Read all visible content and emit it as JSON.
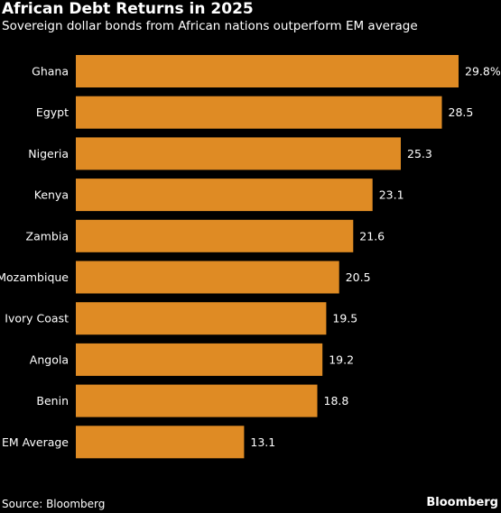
{
  "title": "African Debt Returns in 2025",
  "subtitle": "Sovereign dollar bonds from African nations outperform EM average",
  "source": "Source: Bloomberg",
  "brand": "Bloomberg",
  "colors": {
    "background": "#000000",
    "bar": "#df8b24",
    "text": "#ffffff"
  },
  "chart_data": {
    "type": "bar",
    "orientation": "horizontal",
    "title": "African Debt Returns in 2025",
    "subtitle": "Sovereign dollar bonds from African nations outperform EM average",
    "categories": [
      "Ghana",
      "Egypt",
      "Nigeria",
      "Kenya",
      "Zambia",
      "Mozambique",
      "Ivory Coast",
      "Angola",
      "Benin",
      "EM Average"
    ],
    "values": [
      29.8,
      28.5,
      25.3,
      23.1,
      21.6,
      20.5,
      19.5,
      19.2,
      18.8,
      13.1
    ],
    "value_labels": [
      "29.8%",
      "28.5",
      "25.3",
      "23.1",
      "21.6",
      "20.5",
      "19.5",
      "19.2",
      "18.8",
      "13.1"
    ],
    "xlim": [
      0,
      29.8
    ],
    "grid": false,
    "legend": "none"
  }
}
